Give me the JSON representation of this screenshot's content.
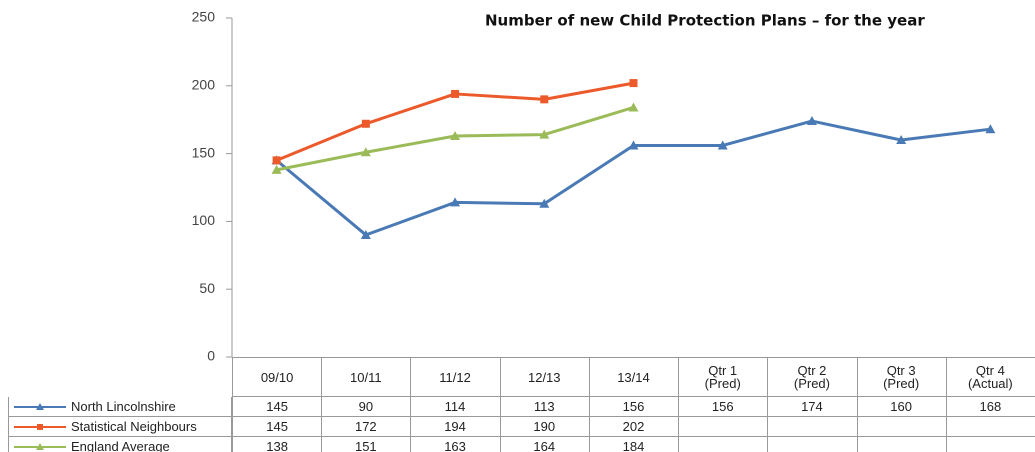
{
  "chart_data": {
    "type": "line",
    "title": "Number of new Child Protection Plans – for the year",
    "categories": [
      "09/10",
      "10/11",
      "11/12",
      "12/13",
      "13/14",
      "Qtr 1 (Pred)",
      "Qtr 2 (Pred)",
      "Qtr 3 (Pred)",
      "Qtr 4 (Actual)"
    ],
    "series": [
      {
        "name": "North Lincolnshire",
        "color": "#4a7ab5",
        "marker": "triangle",
        "values": [
          145,
          90,
          114,
          113,
          156,
          156,
          174,
          160,
          168
        ]
      },
      {
        "name": "Statistical Neighbours",
        "color": "#ec5a2c",
        "marker": "square",
        "values": [
          145,
          172,
          194,
          190,
          202,
          null,
          null,
          null,
          null
        ]
      },
      {
        "name": "England Average",
        "color": "#9bbb59",
        "marker": "triangle",
        "values": [
          138,
          151,
          163,
          164,
          184,
          null,
          null,
          null,
          null
        ]
      }
    ],
    "ylim": [
      0,
      250
    ],
    "yticks": [
      0,
      50,
      100,
      150,
      200,
      250
    ],
    "grid": false
  }
}
